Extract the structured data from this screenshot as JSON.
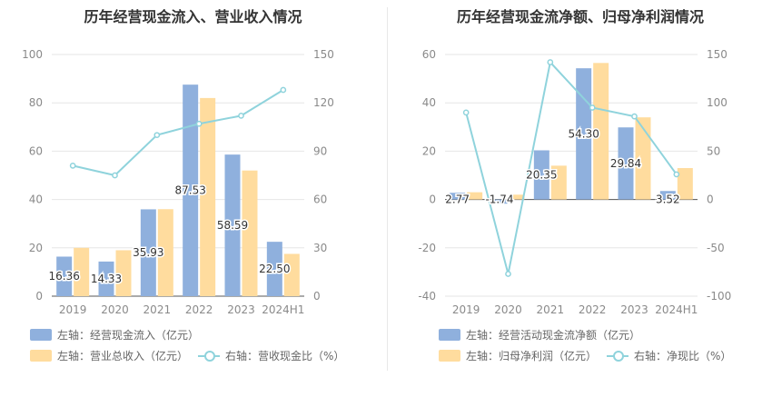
{
  "charts": {
    "left": {
      "title": "历年经营现金流入、营业收入情况",
      "legend": {
        "bar1": "左轴：经营现金流入（亿元）",
        "bar2": "左轴：营业总收入（亿元）",
        "line": "右轴：营收现金比（%）"
      }
    },
    "right": {
      "title": "历年经营现金流净额、归母净利润情况",
      "legend": {
        "bar1": "左轴：经营活动现金流净额（亿元）",
        "bar2": "左轴：归母净利润（亿元）",
        "line": "右轴：净现比（%）"
      }
    }
  },
  "colors": {
    "bar1": "#8fb0dd",
    "bar2": "#ffdc9e",
    "line": "#8fd3dc"
  },
  "chart_data": [
    {
      "type": "bar",
      "title": "历年经营现金流入、营业收入情况",
      "categories": [
        "2019",
        "2020",
        "2021",
        "2022",
        "2023",
        "2024H1"
      ],
      "left_axis": {
        "ylim": [
          0,
          100
        ],
        "ticks": [
          0,
          20,
          40,
          60,
          80,
          100
        ]
      },
      "right_axis": {
        "ylim": [
          0,
          150
        ],
        "ticks": [
          0,
          30,
          60,
          90,
          120,
          150
        ]
      },
      "series": [
        {
          "name": "左轴：经营现金流入（亿元）",
          "axis": "left",
          "kind": "bar",
          "values": [
            16.36,
            14.33,
            35.93,
            87.53,
            58.59,
            22.5
          ],
          "labels": [
            "16.36",
            "14.33",
            "35.93",
            "87.53",
            "58.59",
            "22.50"
          ]
        },
        {
          "name": "左轴：营业总收入（亿元）",
          "axis": "left",
          "kind": "bar",
          "values": [
            20.0,
            19.0,
            36.0,
            82.0,
            52.0,
            17.5
          ]
        },
        {
          "name": "右轴：营收现金比（%）",
          "axis": "right",
          "kind": "line",
          "values": [
            81,
            75,
            100,
            107,
            112,
            128
          ]
        }
      ],
      "grid": true
    },
    {
      "type": "bar",
      "title": "历年经营现金流净额、归母净利润情况",
      "categories": [
        "2019",
        "2020",
        "2021",
        "2022",
        "2023",
        "2024H1"
      ],
      "left_axis": {
        "ylim": [
          -40,
          60
        ],
        "ticks": [
          -40,
          -20,
          0,
          20,
          40,
          60
        ]
      },
      "right_axis": {
        "ylim": [
          -100,
          150
        ],
        "ticks": [
          -100,
          -50,
          0,
          50,
          100,
          150
        ]
      },
      "series": [
        {
          "name": "左轴：经营活动现金流净额（亿元）",
          "axis": "left",
          "kind": "bar",
          "values": [
            2.77,
            -1.74,
            20.35,
            54.3,
            29.84,
            3.52
          ],
          "labels": [
            "2.77",
            "-1.74",
            "20.35",
            "54.30",
            "29.84",
            "3.52"
          ]
        },
        {
          "name": "左轴：归母净利润（亿元）",
          "axis": "left",
          "kind": "bar",
          "values": [
            3.0,
            2.0,
            14.0,
            56.5,
            34.0,
            13.0
          ]
        },
        {
          "name": "右轴：净现比（%）",
          "axis": "right",
          "kind": "line",
          "values": [
            90,
            -77,
            142,
            95,
            86,
            26
          ]
        }
      ],
      "grid": true
    }
  ]
}
